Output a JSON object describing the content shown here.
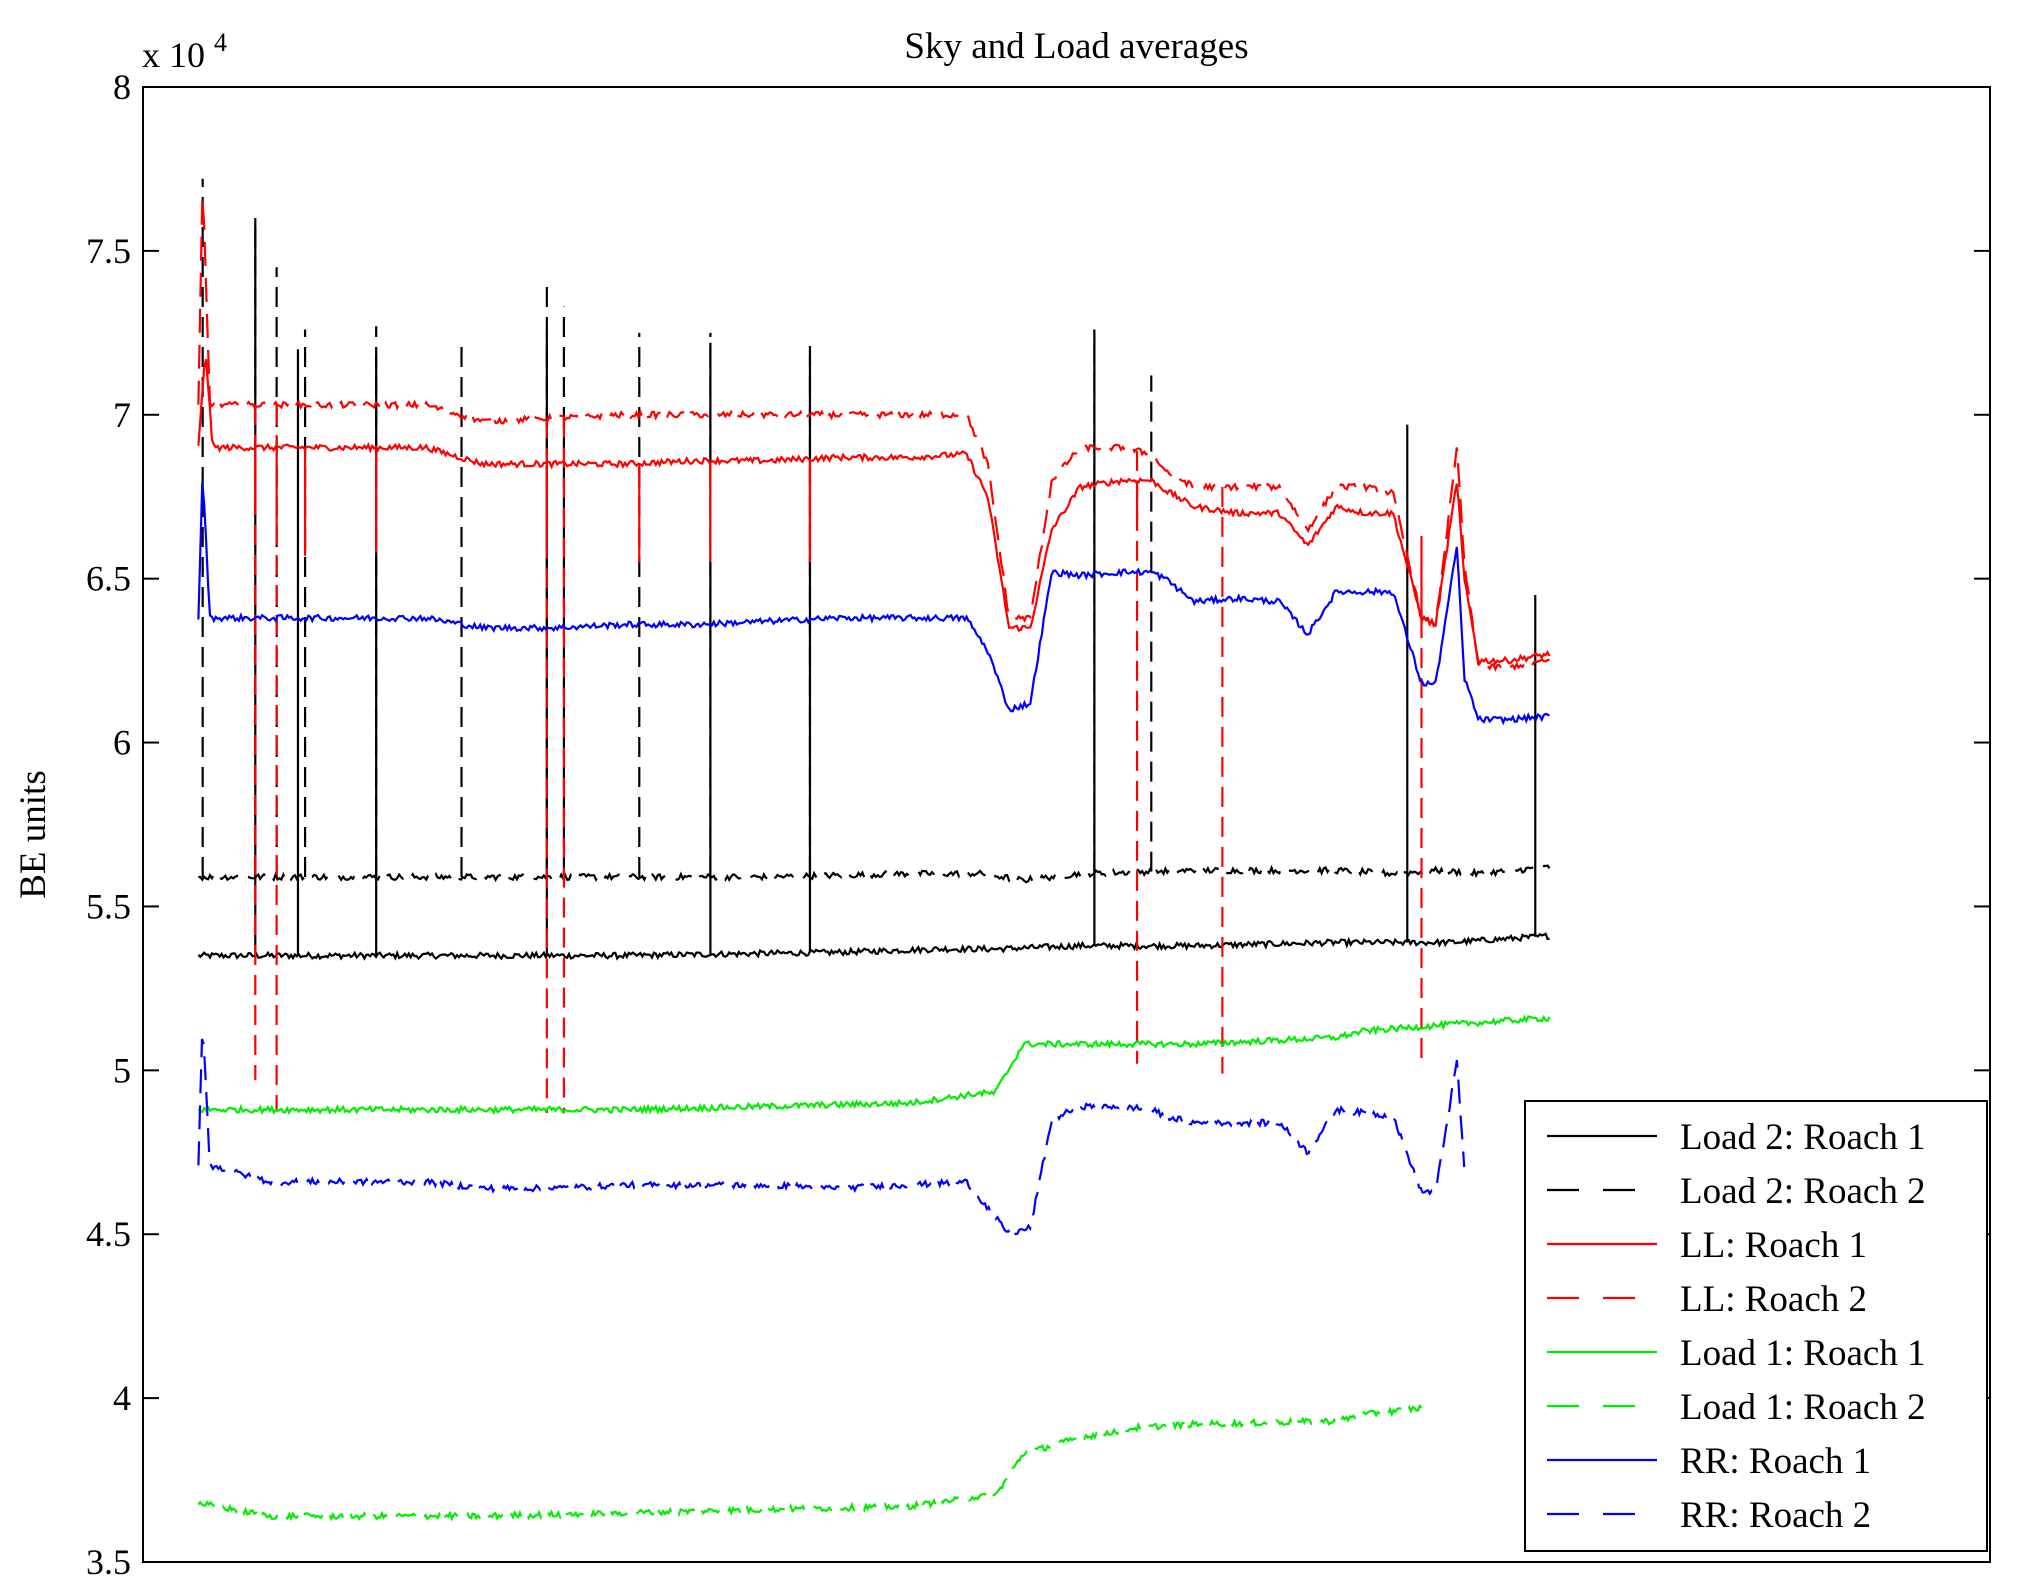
{
  "chart_data": {
    "type": "line",
    "title": "Sky and Load averages",
    "xlabel": "",
    "ylabel": "BE units",
    "y_multiplier_label": "x 10",
    "y_multiplier_exponent": "4",
    "x_tick_labels": "none",
    "ylim": [
      3.5,
      8
    ],
    "yticks": [
      3.5,
      4,
      4.5,
      5,
      5.5,
      6,
      6.5,
      7,
      7.5,
      8
    ],
    "ytick_labels": [
      "3.5",
      "4",
      "4.5",
      "5",
      "5.5",
      "6",
      "6.5",
      "7",
      "7.5",
      "8"
    ],
    "xlim": [
      0,
      1
    ],
    "grid": false,
    "legend_position": "bottom-right",
    "series": [
      {
        "name": "Load 2: Roach 1",
        "color": "#000000",
        "dash": "solid",
        "x": [
          0.0,
          0.15,
          0.3,
          0.45,
          0.52,
          0.56,
          0.62,
          0.7,
          0.8,
          0.88,
          0.95
        ],
        "y": [
          5.35,
          5.35,
          5.35,
          5.36,
          5.37,
          5.37,
          5.38,
          5.38,
          5.39,
          5.39,
          5.41
        ]
      },
      {
        "name": "Load 2: Roach 2",
        "color": "#000000",
        "dash": "dashed",
        "x": [
          0.0,
          0.1,
          0.2,
          0.3,
          0.4,
          0.5,
          0.55,
          0.58,
          0.62,
          0.7,
          0.8,
          0.84,
          0.87,
          0.9,
          0.95
        ],
        "y": [
          5.59,
          5.59,
          5.59,
          5.59,
          5.59,
          5.6,
          5.6,
          5.58,
          5.6,
          5.61,
          5.61,
          5.6,
          5.61,
          5.6,
          5.62
        ]
      },
      {
        "name": "LL: Roach 1",
        "color": "#ff0000",
        "dash": "solid",
        "x": [
          0.0,
          0.005,
          0.01,
          0.05,
          0.1,
          0.16,
          0.2,
          0.25,
          0.3,
          0.35,
          0.4,
          0.45,
          0.5,
          0.54,
          0.555,
          0.57,
          0.585,
          0.6,
          0.62,
          0.65,
          0.67,
          0.68,
          0.7,
          0.73,
          0.76,
          0.78,
          0.8,
          0.82,
          0.84,
          0.86,
          0.87,
          0.885,
          0.89,
          0.9,
          0.92,
          0.95
        ],
        "y": [
          6.9,
          7.2,
          6.9,
          6.9,
          6.9,
          6.9,
          6.85,
          6.85,
          6.85,
          6.86,
          6.86,
          6.87,
          6.87,
          6.88,
          6.75,
          6.35,
          6.35,
          6.65,
          6.78,
          6.8,
          6.8,
          6.77,
          6.72,
          6.7,
          6.7,
          6.6,
          6.72,
          6.7,
          6.7,
          6.38,
          6.36,
          6.8,
          6.5,
          6.25,
          6.25,
          6.27
        ]
      },
      {
        "name": "LL: Roach 2",
        "color": "#ff0000",
        "dash": "dashed",
        "x": [
          0.0,
          0.003,
          0.008,
          0.05,
          0.1,
          0.16,
          0.2,
          0.25,
          0.3,
          0.35,
          0.4,
          0.45,
          0.5,
          0.54,
          0.555,
          0.57,
          0.585,
          0.6,
          0.62,
          0.65,
          0.67,
          0.68,
          0.7,
          0.73,
          0.76,
          0.78,
          0.8,
          0.82,
          0.84,
          0.86,
          0.87,
          0.885,
          0.89,
          0.9,
          0.92,
          0.95
        ],
        "y": [
          7.03,
          7.72,
          7.03,
          7.03,
          7.03,
          7.03,
          6.98,
          6.99,
          7.0,
          7.0,
          7.0,
          7.0,
          7.0,
          7.0,
          6.85,
          6.38,
          6.38,
          6.8,
          6.9,
          6.9,
          6.88,
          6.83,
          6.78,
          6.78,
          6.78,
          6.65,
          6.78,
          6.78,
          6.76,
          6.38,
          6.36,
          6.9,
          6.55,
          6.23,
          6.23,
          6.25
        ]
      },
      {
        "name": "Load 1: Roach 1",
        "color": "#00ee00",
        "dash": "solid",
        "x": [
          0.0,
          0.1,
          0.2,
          0.3,
          0.4,
          0.5,
          0.55,
          0.56,
          0.58,
          0.62,
          0.7,
          0.8,
          0.82,
          0.88,
          0.95
        ],
        "y": [
          4.88,
          4.88,
          4.88,
          4.88,
          4.89,
          4.9,
          4.93,
          4.93,
          5.08,
          5.08,
          5.08,
          5.1,
          5.12,
          5.14,
          5.16
        ]
      },
      {
        "name": "Load 1: Roach 2",
        "color": "#00ee00",
        "dash": "dashed",
        "x": [
          0.0,
          0.05,
          0.1,
          0.2,
          0.3,
          0.4,
          0.5,
          0.55,
          0.56,
          0.58,
          0.62,
          0.66,
          0.7,
          0.8,
          0.82,
          0.86
        ],
        "y": [
          3.68,
          3.64,
          3.64,
          3.64,
          3.65,
          3.66,
          3.67,
          3.7,
          3.7,
          3.83,
          3.88,
          3.91,
          3.92,
          3.93,
          3.95,
          3.97
        ]
      },
      {
        "name": "RR: Roach 1",
        "color": "#0000ff",
        "dash": "solid",
        "x": [
          0.0,
          0.003,
          0.008,
          0.05,
          0.1,
          0.16,
          0.2,
          0.25,
          0.3,
          0.35,
          0.4,
          0.45,
          0.5,
          0.54,
          0.555,
          0.57,
          0.585,
          0.6,
          0.62,
          0.65,
          0.67,
          0.68,
          0.7,
          0.73,
          0.76,
          0.78,
          0.8,
          0.82,
          0.84,
          0.86,
          0.87,
          0.885,
          0.89,
          0.9,
          0.92,
          0.95
        ],
        "y": [
          6.38,
          6.83,
          6.38,
          6.38,
          6.38,
          6.38,
          6.35,
          6.35,
          6.36,
          6.36,
          6.37,
          6.38,
          6.38,
          6.38,
          6.28,
          6.1,
          6.12,
          6.52,
          6.51,
          6.52,
          6.52,
          6.5,
          6.43,
          6.44,
          6.43,
          6.33,
          6.46,
          6.46,
          6.46,
          6.18,
          6.18,
          6.6,
          6.2,
          6.07,
          6.07,
          6.08
        ]
      },
      {
        "name": "RR: Roach 2",
        "color": "#0000ff",
        "dash": "dashed",
        "x": [
          0.0,
          0.003,
          0.008,
          0.05,
          0.1,
          0.16,
          0.2,
          0.25,
          0.3,
          0.35,
          0.4,
          0.45,
          0.5,
          0.54,
          0.555,
          0.57,
          0.585,
          0.6,
          0.62,
          0.65,
          0.67,
          0.68,
          0.7,
          0.73,
          0.76,
          0.78,
          0.8,
          0.82,
          0.84,
          0.86,
          0.87,
          0.885,
          0.89
        ],
        "y": [
          4.71,
          5.16,
          4.71,
          4.66,
          4.66,
          4.66,
          4.64,
          4.64,
          4.65,
          4.65,
          4.65,
          4.64,
          4.65,
          4.66,
          4.58,
          4.5,
          4.52,
          4.85,
          4.89,
          4.89,
          4.88,
          4.86,
          4.84,
          4.84,
          4.84,
          4.75,
          4.88,
          4.87,
          4.86,
          4.63,
          4.63,
          5.03,
          4.7
        ]
      }
    ],
    "spikes": [
      {
        "series": 1,
        "x": 0.003,
        "y": 7.72
      },
      {
        "series": 1,
        "x": 0.04,
        "y": 7.6
      },
      {
        "series": 1,
        "x": 0.055,
        "y": 7.45
      },
      {
        "series": 1,
        "x": 0.075,
        "y": 7.26
      },
      {
        "series": 1,
        "x": 0.125,
        "y": 7.27
      },
      {
        "series": 1,
        "x": 0.185,
        "y": 7.23
      },
      {
        "series": 1,
        "x": 0.245,
        "y": 7.39
      },
      {
        "series": 1,
        "x": 0.257,
        "y": 7.33
      },
      {
        "series": 1,
        "x": 0.31,
        "y": 7.25
      },
      {
        "series": 1,
        "x": 0.36,
        "y": 7.25
      },
      {
        "series": 1,
        "x": 0.43,
        "y": 7.23
      },
      {
        "series": 1,
        "x": 0.63,
        "y": 7.26
      },
      {
        "series": 1,
        "x": 0.67,
        "y": 7.12
      },
      {
        "series": 0,
        "x": 0.04,
        "y": 7.6
      },
      {
        "series": 0,
        "x": 0.07,
        "y": 7.2
      },
      {
        "series": 0,
        "x": 0.125,
        "y": 7.18
      },
      {
        "series": 0,
        "x": 0.245,
        "y": 7.25
      },
      {
        "series": 0,
        "x": 0.36,
        "y": 7.22
      },
      {
        "series": 0,
        "x": 0.43,
        "y": 7.18
      },
      {
        "series": 0,
        "x": 0.63,
        "y": 7.26
      },
      {
        "series": 0,
        "x": 0.85,
        "y": 6.97
      },
      {
        "series": 0,
        "x": 0.94,
        "y": 6.45
      },
      {
        "series": 2,
        "x": 0.04,
        "y": 6.72
      },
      {
        "series": 2,
        "x": 0.055,
        "y": 6.62
      },
      {
        "series": 2,
        "x": 0.075,
        "y": 6.57
      },
      {
        "series": 2,
        "x": 0.125,
        "y": 6.58
      },
      {
        "series": 2,
        "x": 0.245,
        "y": 6.61
      },
      {
        "series": 2,
        "x": 0.31,
        "y": 6.55
      },
      {
        "series": 2,
        "x": 0.36,
        "y": 6.55
      },
      {
        "series": 2,
        "x": 0.43,
        "y": 6.55
      },
      {
        "series": 2,
        "x": 0.66,
        "y": 6.68
      },
      {
        "series": 2,
        "x": 0.86,
        "y": 6.63
      },
      {
        "series": 3,
        "x": 0.04,
        "y": 4.97
      },
      {
        "series": 3,
        "x": 0.055,
        "y": 4.88
      },
      {
        "series": 3,
        "x": 0.245,
        "y": 4.87
      },
      {
        "series": 3,
        "x": 0.257,
        "y": 4.87
      },
      {
        "series": 3,
        "x": 0.66,
        "y": 5.02
      },
      {
        "series": 3,
        "x": 0.72,
        "y": 4.99
      },
      {
        "series": 3,
        "x": 0.86,
        "y": 5.03
      }
    ]
  }
}
